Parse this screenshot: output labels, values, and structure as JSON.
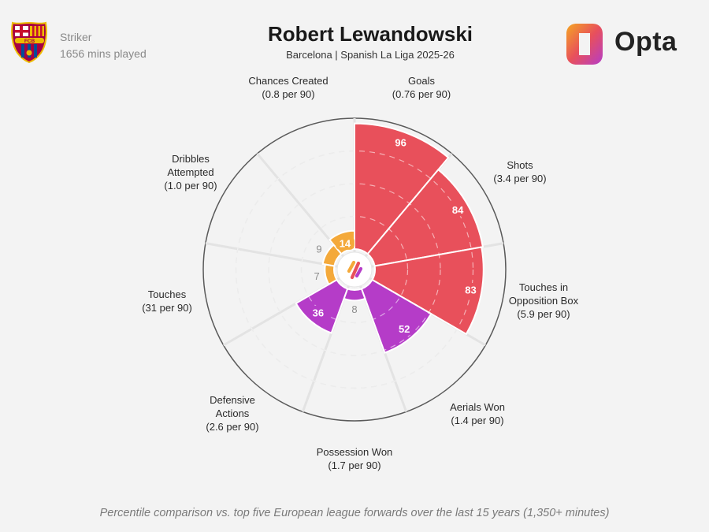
{
  "player": {
    "name": "Robert Lewandowski",
    "subtitle": "Barcelona | Spanish La Liga 2025-26",
    "position": "Striker",
    "minutes": "1656 mins played"
  },
  "brand": {
    "name": "Opta"
  },
  "crest": {
    "text": "FCB"
  },
  "footer": "Percentile comparison vs. top five European league forwards over the last 15 years (1,350+ minutes)",
  "colors": {
    "attacking": "#e8505b",
    "possession": "#f4a93a",
    "defending": "#b53cc8"
  },
  "chart_data": {
    "type": "polar-bar",
    "scale_max": 100,
    "metrics": [
      {
        "label": [
          "Goals",
          "(0.76 per 90)"
        ],
        "value": 96,
        "group": "attacking"
      },
      {
        "label": [
          "Shots",
          "(3.4 per 90)"
        ],
        "value": 84,
        "group": "attacking"
      },
      {
        "label": [
          "Touches in",
          "Opposition Box",
          "(5.9 per 90)"
        ],
        "value": 83,
        "group": "attacking"
      },
      {
        "label": [
          "Aerials Won",
          "(1.4 per 90)"
        ],
        "value": 52,
        "group": "defending"
      },
      {
        "label": [
          "Possession Won",
          "(1.7 per 90)"
        ],
        "value": 8,
        "group": "defending"
      },
      {
        "label": [
          "Defensive",
          "Actions",
          "(2.6 per 90)"
        ],
        "value": 36,
        "group": "defending"
      },
      {
        "label": [
          "Touches",
          "(31 per 90)"
        ],
        "value": 7,
        "group": "possession"
      },
      {
        "label": [
          "Dribbles",
          "Attempted",
          "(1.0 per 90)"
        ],
        "value": 9,
        "group": "possession"
      },
      {
        "label": [
          "Chances Created",
          "(0.8 per 90)"
        ],
        "value": 14,
        "group": "possession"
      }
    ]
  }
}
